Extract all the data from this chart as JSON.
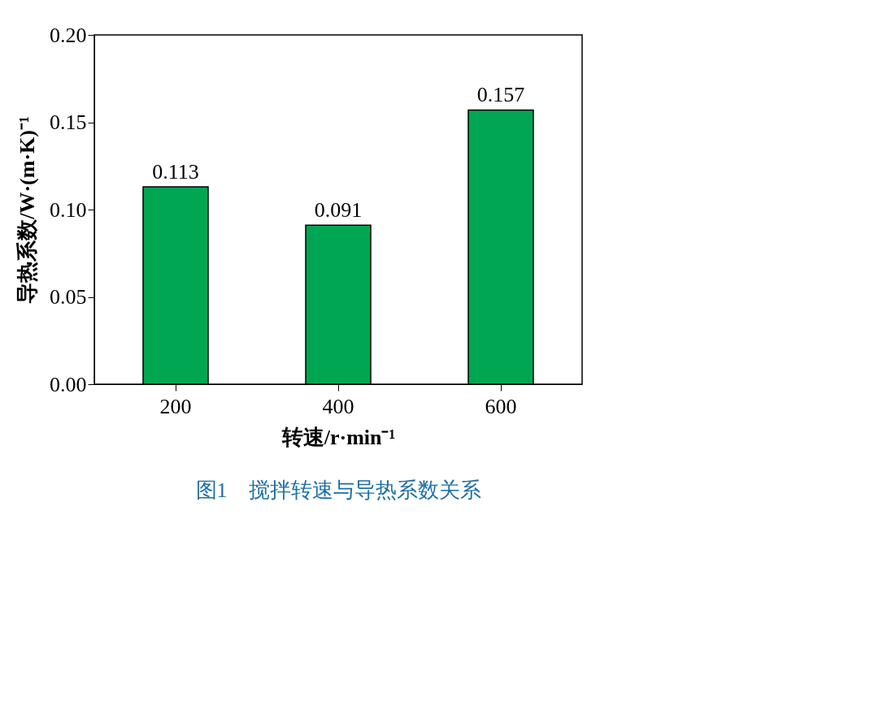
{
  "chart_data": {
    "type": "bar",
    "title": "图1　搅拌转速与导热系数关系",
    "xlabel": "转速/r·min⁻¹",
    "ylabel": "导热系数/W·(m·K)⁻¹",
    "categories": [
      "200",
      "400",
      "600"
    ],
    "values": [
      0.113,
      0.091,
      0.157
    ],
    "color": "#00a651",
    "ylim": [
      0,
      0.2
    ],
    "yticks": [
      {
        "value": 0,
        "label": "0.00"
      },
      {
        "value": 0.05,
        "label": "0.05"
      },
      {
        "value": 0.1,
        "label": "0.10"
      },
      {
        "value": 0.15,
        "label": "0.15"
      },
      {
        "value": 0.2,
        "label": "0.20"
      }
    ],
    "data_labels": true,
    "grid": false
  }
}
